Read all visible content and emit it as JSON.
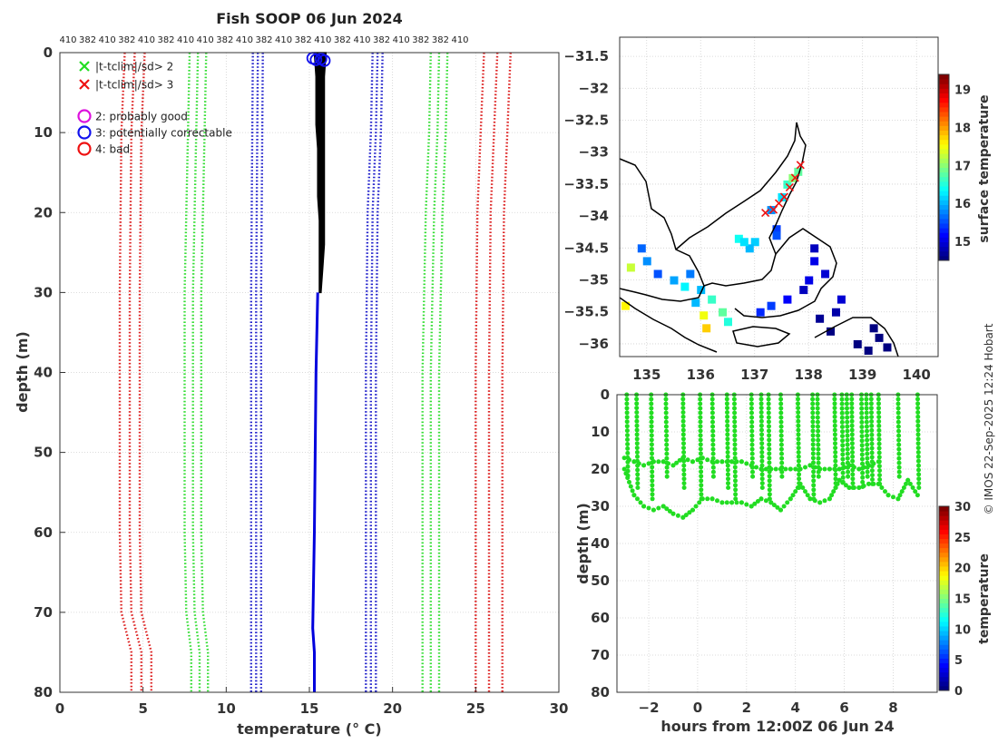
{
  "title": "Fish SOOP 06 Jun 2024",
  "credit": "© IMOS 22-Sep-2025 12:24 Hobart",
  "chart_data": [
    {
      "id": "profile",
      "type": "line",
      "xlabel": "temperature (° C)",
      "ylabel": "depth (m)",
      "xlim": [
        0,
        30
      ],
      "ylim": [
        0,
        80
      ],
      "y_reversed": true,
      "xticks": [
        0,
        5,
        10,
        15,
        20,
        25,
        30
      ],
      "yticks": [
        0,
        10,
        20,
        30,
        40,
        50,
        60,
        70,
        80
      ],
      "grid": true,
      "top_tick_labels": [
        "410",
        "382",
        "410",
        "382",
        "410",
        "382",
        "410",
        "410",
        "382",
        "410",
        "382",
        "410",
        "382",
        "410",
        "382",
        "410",
        "382",
        "410",
        "382",
        "382",
        "410"
      ],
      "legend": {
        "placement": "top-left",
        "entries": [
          {
            "marker": "x",
            "color": "#22dd22",
            "label": "|t-tclim|/sd> 2"
          },
          {
            "marker": "x",
            "color": "#ee1111",
            "label": "|t-tclim|/sd> 3"
          },
          {
            "marker": "circle",
            "color": "#dd11dd",
            "label": "2: probably good"
          },
          {
            "marker": "circle",
            "color": "#1111ee",
            "label": "3: potentially correctable"
          },
          {
            "marker": "circle",
            "color": "#ee1111",
            "label": "4: bad"
          }
        ]
      },
      "envelopes": [
        {
          "name": "clim -3sd",
          "color": "#dd2222",
          "offsets": [
            -0.6,
            0,
            0.6
          ],
          "points": [
            [
              4.5,
              0
            ],
            [
              4.3,
              10
            ],
            [
              4.2,
              30
            ],
            [
              4.2,
              60
            ],
            [
              4.3,
              70
            ],
            [
              4.9,
              75
            ],
            [
              4.9,
              80
            ]
          ]
        },
        {
          "name": "clim -2sd",
          "color": "#33dd33",
          "offsets": [
            -0.5,
            0,
            0.5
          ],
          "points": [
            [
              8.3,
              0
            ],
            [
              8.2,
              10
            ],
            [
              8.0,
              30
            ],
            [
              8.0,
              60
            ],
            [
              8.1,
              70
            ],
            [
              8.4,
              75
            ],
            [
              8.4,
              80
            ]
          ]
        },
        {
          "name": "clim -1sd",
          "color": "#2222cc",
          "offsets": [
            -0.3,
            0,
            0.3
          ],
          "points": [
            [
              11.9,
              0
            ],
            [
              11.8,
              30
            ],
            [
              11.8,
              80
            ]
          ]
        },
        {
          "name": "clim +1sd",
          "color": "#2222cc",
          "offsets": [
            -0.3,
            0,
            0.3
          ],
          "points": [
            [
              19.1,
              0
            ],
            [
              19.0,
              10
            ],
            [
              18.8,
              20
            ],
            [
              18.7,
              40
            ],
            [
              18.7,
              80
            ]
          ]
        },
        {
          "name": "clim +2sd",
          "color": "#33dd33",
          "offsets": [
            -0.5,
            0,
            0.5
          ],
          "points": [
            [
              22.8,
              0
            ],
            [
              22.7,
              10
            ],
            [
              22.5,
              20
            ],
            [
              22.3,
              40
            ],
            [
              22.3,
              80
            ]
          ]
        },
        {
          "name": "clim +3sd",
          "color": "#dd2222",
          "offsets": [
            -0.8,
            0,
            0.8
          ],
          "points": [
            [
              26.3,
              0
            ],
            [
              26.1,
              10
            ],
            [
              25.9,
              20
            ],
            [
              25.8,
              40
            ],
            [
              25.8,
              60
            ],
            [
              25.8,
              80
            ]
          ]
        }
      ],
      "profile_black": {
        "color": "#000000",
        "x_min": [
          15.3,
          15.4,
          15.4,
          15.4,
          15.5,
          15.5,
          15.5,
          15.6,
          15.6,
          15.6,
          15.6
        ],
        "x_max": [
          16.0,
          15.9,
          15.9,
          15.9,
          15.9,
          15.9,
          15.9,
          15.9,
          15.9,
          15.8,
          15.7
        ],
        "depth": [
          0,
          3,
          6,
          9,
          12,
          15,
          18,
          21,
          24,
          27,
          30
        ]
      },
      "profile_blue": {
        "color": "#0000dd",
        "points": [
          [
            15.5,
            30
          ],
          [
            15.4,
            40
          ],
          [
            15.3,
            60
          ],
          [
            15.2,
            72
          ],
          [
            15.3,
            75
          ],
          [
            15.3,
            80
          ]
        ]
      },
      "flag_circles": {
        "color": "#1111ee",
        "points": [
          [
            15.2,
            0.7
          ],
          [
            15.4,
            0.9
          ],
          [
            15.7,
            0.8
          ],
          [
            15.9,
            1.0
          ]
        ]
      }
    },
    {
      "id": "map",
      "type": "heatmap",
      "colorbar_label": "surface temperature",
      "xlim": [
        134.5,
        140.4
      ],
      "ylim": [
        -36.2,
        -31.2
      ],
      "xticks": [
        135,
        136,
        137,
        138,
        139,
        140
      ],
      "yticks": [
        -31.5,
        -32,
        -32.5,
        -33,
        -33.5,
        -34,
        -34.5,
        -35,
        -35.5,
        -36
      ],
      "colorbar_range": [
        14.5,
        19.4
      ],
      "colorbar_ticks": [
        15,
        16,
        17,
        18,
        19
      ],
      "track": [
        [
          137.85,
          -33.2
        ],
        [
          137.75,
          -33.4
        ],
        [
          137.65,
          -33.55
        ],
        [
          137.55,
          -33.7
        ],
        [
          137.45,
          -33.8
        ],
        [
          137.35,
          -33.9
        ],
        [
          137.2,
          -33.95
        ]
      ],
      "sst_cells": [
        [
          137.3,
          -33.9,
          15.8
        ],
        [
          137.5,
          -33.7,
          16.2
        ],
        [
          137.6,
          -33.5,
          16.6
        ],
        [
          137.7,
          -33.4,
          17.0
        ],
        [
          137.8,
          -33.3,
          16.8
        ],
        [
          137.4,
          -34.2,
          15.4
        ],
        [
          137.4,
          -34.3,
          15.5
        ],
        [
          137.0,
          -34.4,
          16.1
        ],
        [
          136.9,
          -34.5,
          16.0
        ],
        [
          138.1,
          -34.5,
          14.8
        ],
        [
          138.1,
          -34.7,
          15.0
        ],
        [
          138.3,
          -34.9,
          14.9
        ],
        [
          138.0,
          -35.0,
          15.0
        ],
        [
          137.9,
          -35.15,
          14.8
        ],
        [
          137.6,
          -35.3,
          15.1
        ],
        [
          137.3,
          -35.4,
          15.4
        ],
        [
          137.1,
          -35.5,
          15.3
        ],
        [
          138.2,
          -35.6,
          14.6
        ],
        [
          138.4,
          -35.8,
          14.5
        ],
        [
          138.5,
          -35.5,
          14.7
        ],
        [
          138.6,
          -35.3,
          14.9
        ],
        [
          139.2,
          -35.75,
          14.4
        ],
        [
          139.3,
          -35.9,
          14.3
        ],
        [
          139.45,
          -36.05,
          14.2
        ],
        [
          139.1,
          -36.1,
          14.3
        ],
        [
          138.9,
          -36.0,
          14.3
        ],
        [
          134.9,
          -34.5,
          15.6
        ],
        [
          135.0,
          -34.7,
          15.8
        ],
        [
          135.2,
          -34.9,
          15.5
        ],
        [
          135.5,
          -35.0,
          15.9
        ],
        [
          135.7,
          -35.1,
          16.3
        ],
        [
          136.0,
          -35.15,
          16.0
        ],
        [
          135.8,
          -34.9,
          15.7
        ],
        [
          136.2,
          -35.3,
          16.6
        ],
        [
          136.4,
          -35.5,
          16.8
        ],
        [
          136.5,
          -35.65,
          16.5
        ],
        [
          134.6,
          -35.4,
          17.6
        ],
        [
          136.05,
          -35.55,
          17.5
        ],
        [
          136.1,
          -35.75,
          17.8
        ],
        [
          136.7,
          -34.35,
          16.4
        ],
        [
          136.8,
          -34.4,
          16.2
        ],
        [
          135.9,
          -35.35,
          16.0
        ],
        [
          134.7,
          -34.8,
          17.3
        ]
      ]
    },
    {
      "id": "depth_time",
      "type": "scatter",
      "xlabel": "hours from 12:00Z 06 Jun 24",
      "ylabel": "depth (m)",
      "colorbar_label": "temperature",
      "xlim": [
        -3.3,
        9.8
      ],
      "ylim": [
        0,
        80
      ],
      "y_reversed": true,
      "xticks": [
        -2,
        0,
        2,
        4,
        6,
        8
      ],
      "yticks": [
        0,
        10,
        20,
        30,
        40,
        50,
        60,
        70,
        80
      ],
      "colorbar_range": [
        0,
        30
      ],
      "colorbar_ticks": [
        0,
        5,
        10,
        15,
        20,
        25,
        30
      ],
      "point_color": "#22dd22",
      "series": [
        {
          "name": "seabed depth",
          "x": [
            -3.0,
            -2.6,
            -2.2,
            -1.8,
            -1.4,
            -1.0,
            -0.6,
            -0.2,
            0.2,
            0.6,
            1.0,
            1.4,
            1.8,
            2.2,
            2.6,
            3.0,
            3.4,
            3.8,
            4.2,
            4.6,
            5.0,
            5.4,
            5.8,
            6.2,
            6.6,
            7.0,
            7.4,
            7.8,
            8.2,
            8.6,
            9.0
          ],
          "y": [
            20,
            27,
            30,
            31,
            30,
            32,
            33,
            31,
            28,
            28,
            29,
            29,
            29,
            30,
            28,
            29,
            31,
            28,
            24,
            28,
            29,
            28,
            23,
            25,
            25,
            24,
            24,
            27,
            28,
            23,
            27
          ]
        },
        {
          "name": "mid-depth line",
          "x": [
            -3.0,
            -2.6,
            -2.2,
            -1.8,
            -1.4,
            -1.0,
            -0.6,
            -0.2,
            0.2,
            0.6,
            1.0,
            1.4,
            1.8,
            2.2,
            2.6,
            3.0,
            3.4,
            3.8,
            4.2,
            4.6,
            5.0,
            5.4,
            5.8,
            6.2,
            6.6,
            7.0,
            7.4
          ],
          "y": [
            17,
            18,
            19,
            18,
            18,
            19,
            17,
            18,
            17,
            18,
            18,
            18,
            18,
            19,
            20,
            20,
            20,
            20,
            20,
            19,
            20,
            20,
            20,
            19,
            20,
            19,
            18
          ]
        },
        {
          "name": "cast times",
          "x": [
            -2.9,
            -2.5,
            -1.9,
            -1.3,
            -0.6,
            0.1,
            0.6,
            1.2,
            1.5,
            2.2,
            2.6,
            2.9,
            3.4,
            4.1,
            4.7,
            4.9,
            5.6,
            5.9,
            6.1,
            6.3,
            6.7,
            6.9,
            7.1,
            7.4,
            8.2,
            9.0
          ],
          "y": [
            0,
            0,
            0,
            0,
            0,
            0,
            0,
            0,
            0,
            0,
            0,
            0,
            0,
            0,
            0,
            0,
            0,
            0,
            0,
            0,
            0,
            0,
            0,
            0,
            0,
            0
          ]
        }
      ]
    }
  ]
}
